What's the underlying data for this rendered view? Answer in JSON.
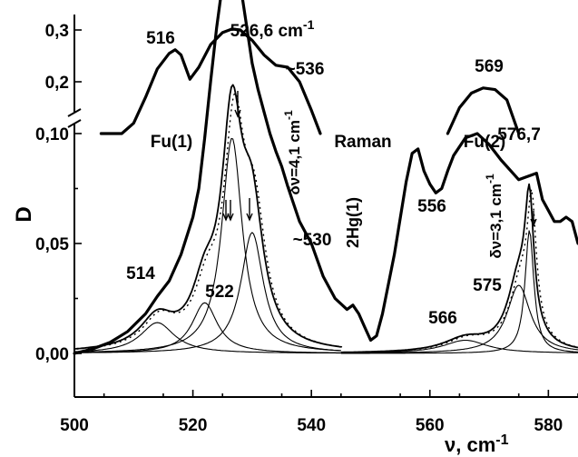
{
  "chart_data": {
    "type": "line",
    "xlabel": "ν,  cm",
    "xlabel_sup": "-1",
    "ylabel": "D",
    "xlim": [
      500,
      585
    ],
    "x_ticks": [
      "500",
      "520",
      "540",
      "560",
      "580"
    ],
    "y_ticks_lower": [
      "0,00",
      "0,05"
    ],
    "y_ticks_upper": [
      "0,10",
      "0,2",
      "0,3"
    ],
    "y_axis_break": true,
    "series": [
      {
        "name": "",
        "role": "upper-segment",
        "x": [
          504.5,
          506,
          508,
          510,
          512,
          514,
          516,
          517,
          518,
          519.5,
          521,
          523,
          525,
          526.6,
          528,
          530,
          532,
          534,
          536,
          538,
          540,
          541.5
        ],
        "y": [
          0.1,
          0.1,
          0.1,
          0.12,
          0.17,
          0.225,
          0.255,
          0.262,
          0.252,
          0.205,
          0.228,
          0.272,
          0.295,
          0.302,
          0.3,
          0.28,
          0.252,
          0.232,
          0.228,
          0.2,
          0.145,
          0.1
        ]
      },
      {
        "name": "",
        "role": "upper-segment-2",
        "x": [
          563,
          565,
          567,
          569,
          571,
          573,
          575
        ],
        "y": [
          0.1,
          0.15,
          0.178,
          0.188,
          0.185,
          0.165,
          0.1
        ]
      },
      {
        "name": "",
        "role": "experimental-lower",
        "x": [
          500,
          503,
          506,
          509,
          512,
          514,
          516,
          518,
          520,
          521,
          522,
          523,
          524,
          525,
          526,
          527,
          528,
          529,
          530,
          531,
          532,
          533,
          534,
          535,
          536,
          538,
          540,
          542,
          544,
          546,
          547,
          548,
          549,
          550,
          551,
          552,
          554,
          556,
          557,
          558,
          559,
          560,
          561,
          562,
          563,
          564,
          566,
          568,
          570,
          572,
          574,
          575,
          576,
          577,
          578,
          579,
          580,
          581,
          582,
          583,
          584,
          585
        ],
        "y": [
          0.0,
          0.002,
          0.005,
          0.01,
          0.018,
          0.026,
          0.033,
          0.045,
          0.062,
          0.075,
          0.098,
          0.124,
          0.148,
          0.168,
          0.178,
          0.178,
          0.168,
          0.15,
          0.132,
          0.12,
          0.11,
          0.1,
          0.092,
          0.085,
          0.076,
          0.06,
          0.05,
          0.035,
          0.025,
          0.02,
          0.022,
          0.018,
          0.012,
          0.006,
          0.008,
          0.018,
          0.045,
          0.078,
          0.091,
          0.093,
          0.083,
          0.077,
          0.073,
          0.075,
          0.083,
          0.09,
          0.098,
          0.1,
          0.095,
          0.088,
          0.082,
          0.079,
          0.08,
          0.081,
          0.082,
          0.07,
          0.065,
          0.06,
          0.06,
          0.062,
          0.06,
          0.05
        ]
      }
    ],
    "peak_labels": [
      "516",
      "526,6 cm",
      "~536",
      "569",
      "576,7",
      "514",
      "522",
      "~530",
      "556",
      "566",
      "575"
    ],
    "peak_label_sup": "-1",
    "annotations": {
      "fu1": "Fu(1)",
      "fu2": "Fu(2)",
      "raman": "Raman",
      "hg": "2Hg(1)",
      "dv1": "δν=4,1 cm",
      "dv2": "δν=3,1 cm",
      "dv_sup": "-1"
    }
  }
}
